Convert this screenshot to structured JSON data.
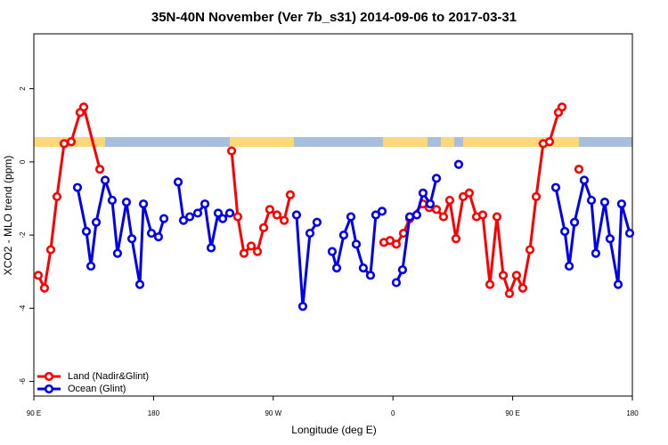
{
  "chart_data": {
    "type": "line",
    "title": "35N-40N November (Ver 7b_s31)   2014-09-06 to 2017-03-31",
    "x_label": "Longitude (deg E)",
    "y_label": "XCO2 - MLO trend (ppm)",
    "xlim": [
      90,
      540
    ],
    "xticks": [
      {
        "value": 90,
        "label": "90 E"
      },
      {
        "value": 180,
        "label": "180"
      },
      {
        "value": 270,
        "label": "90 W"
      },
      {
        "value": 360,
        "label": "0"
      },
      {
        "value": 450,
        "label": "90 E"
      },
      {
        "value": 540,
        "label": "180"
      }
    ],
    "ylim": [
      -6.4,
      3.5
    ],
    "yticks": [
      -6,
      -4,
      -2,
      0,
      2
    ],
    "legend": "lower left",
    "series": [
      {
        "name": "Land (Nadir&Glint)",
        "color": "#ff0000",
        "x": [
          93.3,
          98.0,
          102.7,
          107.4,
          112.8,
          118.1,
          124.8,
          127.5,
          139.6,
          null,
          238.7,
          243.3,
          248.0,
          253.4,
          258.1,
          262.8,
          267.4,
          272.8,
          278.2,
          282.8,
          null,
          353.2,
          357.8,
          362.5,
          367.9,
          372.6,
          382.6,
          387.3,
          392.7,
          398.0,
          402.7,
          407.4,
          412.8,
          417.4,
          422.8,
          427.5,
          432.9,
          438.2,
          442.9,
          447.6,
          452.9,
          457.6,
          463.0,
          467.7,
          473.0,
          477.7,
          484.4,
          487.1,
          null,
          499.8
        ],
        "values": [
          -3.1,
          -3.45,
          -2.4,
          -0.95,
          0.5,
          0.55,
          1.35,
          1.5,
          -0.2,
          null,
          0.3,
          -1.5,
          -2.5,
          -2.3,
          -2.45,
          -1.8,
          -1.3,
          -1.45,
          -1.6,
          -0.9,
          null,
          -2.2,
          -2.15,
          -2.25,
          -1.95,
          -1.55,
          -1.15,
          -1.25,
          -1.3,
          -1.5,
          -1.05,
          -2.1,
          -0.95,
          -0.85,
          -1.5,
          -1.45,
          -3.35,
          -1.5,
          -3.1,
          -3.6,
          -3.1,
          -3.45,
          -2.4,
          -0.95,
          0.5,
          0.55,
          1.35,
          1.5,
          null,
          -0.2
        ]
      },
      {
        "name": "Ocean (Glint)",
        "color": "#0000ee",
        "x": [
          122.8,
          129.5,
          132.9,
          136.9,
          143.6,
          148.9,
          152.9,
          159.6,
          163.7,
          169.7,
          172.4,
          178.4,
          183.7,
          187.8,
          null,
          198.5,
          202.5,
          207.2,
          213.2,
          218.6,
          223.3,
          228.6,
          232.0,
          237.3,
          null,
          287.5,
          292.2,
          297.6,
          302.9,
          null,
          314.3,
          317.7,
          323.0,
          328.4,
          332.4,
          337.7,
          343.1,
          347.1,
          351.8,
          null,
          362.5,
          367.2,
          372.6,
          377.9,
          382.6,
          388.0,
          392.7,
          null,
          409.4,
          null,
          482.4,
          489.2,
          492.5,
          496.5,
          503.8,
          509.2,
          512.5,
          519.2,
          523.2,
          529.3,
          531.9,
          538.0
        ],
        "values": [
          -0.7,
          -1.9,
          -2.85,
          -1.65,
          -0.5,
          -1.05,
          -2.5,
          -1.1,
          -2.1,
          -3.35,
          -1.15,
          -1.95,
          -2.05,
          -1.55,
          null,
          -0.55,
          -1.6,
          -1.5,
          -1.4,
          -1.15,
          -2.35,
          -1.4,
          -1.55,
          -1.4,
          null,
          -1.45,
          -3.95,
          -1.95,
          -1.65,
          null,
          -2.45,
          -2.9,
          -2.0,
          -1.5,
          -2.25,
          -2.9,
          -3.1,
          -1.45,
          -1.35,
          null,
          -3.3,
          -2.95,
          -1.5,
          -1.45,
          -0.85,
          -1.15,
          -0.45,
          null,
          -0.07,
          null,
          -0.7,
          -1.9,
          -2.85,
          -1.65,
          -0.5,
          -1.05,
          -2.5,
          -1.1,
          -2.1,
          -3.35,
          -1.15,
          -1.95
        ]
      }
    ]
  }
}
